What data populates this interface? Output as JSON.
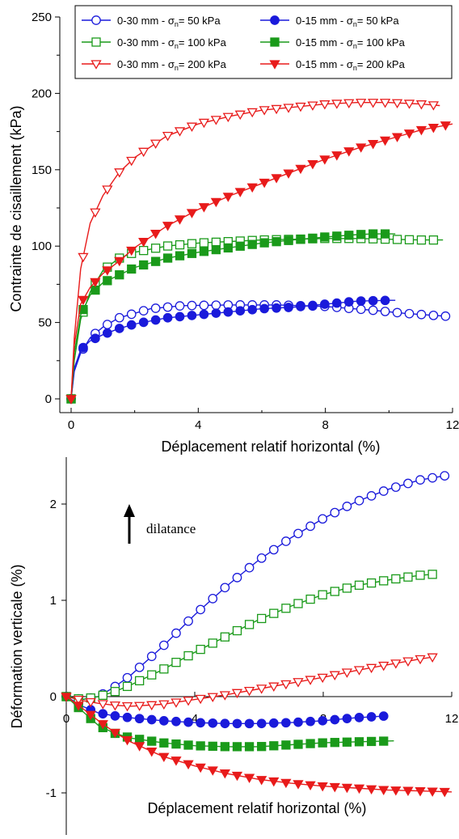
{
  "chart_data": [
    {
      "type": "line",
      "xlabel": "Déplacement relatif horizontal (%)",
      "ylabel": "Contrainte de cisaillement (kPa)",
      "xlim": [
        0,
        12
      ],
      "ylim": [
        0,
        250
      ],
      "xticks": [
        "0",
        "4",
        "8",
        "12"
      ],
      "yticks": [
        "0",
        "50",
        "100",
        "150",
        "200",
        "250"
      ],
      "legend_position": "top",
      "legend": [
        {
          "prefix": "0-30 mm - σ",
          "sub": "n",
          "suffix": "=  50 kPa",
          "color": "#1a1adb",
          "marker": "circle-open"
        },
        {
          "prefix": "0-15 mm - σ",
          "sub": "n",
          "suffix": "=  50 kPa",
          "color": "#1a1adb",
          "marker": "circle-filled"
        },
        {
          "prefix": "0-30 mm - σ",
          "sub": "n",
          "suffix": "=  100 kPa",
          "color": "#1a9a1a",
          "marker": "square-open"
        },
        {
          "prefix": "0-15 mm - σ",
          "sub": "n",
          "suffix": "=  100 kPa",
          "color": "#1a9a1a",
          "marker": "square-filled"
        },
        {
          "prefix": "0-30 mm - σ",
          "sub": "n",
          "suffix": "=  200 kPa",
          "color": "#e81b1b",
          "marker": "triangle-down-open"
        },
        {
          "prefix": "0-15 mm - σ",
          "sub": "n",
          "suffix": "=  200 kPa",
          "color": "#e81b1b",
          "marker": "triangle-down-filled"
        }
      ],
      "series": [
        {
          "color": "#1a1adb",
          "marker": "circle-open",
          "x": [
            0,
            0.1,
            0.3,
            0.6,
            1.0,
            1.5,
            2.5,
            3.5,
            5.0,
            6.5,
            8.0,
            9.5,
            10.5,
            11.5,
            11.9
          ],
          "y": [
            0,
            18,
            30,
            40,
            47,
            53,
            59,
            61,
            61.5,
            61.5,
            60.5,
            58,
            56,
            54.5,
            54
          ]
        },
        {
          "color": "#1a1adb",
          "marker": "circle-filled",
          "x": [
            0,
            0.1,
            0.3,
            0.6,
            1.0,
            1.5,
            2.0,
            3.0,
            4.0,
            5.0,
            6.0,
            7.0,
            8.0,
            9.0,
            10.0,
            10.2
          ],
          "y": [
            0,
            20,
            32,
            38,
            42,
            46,
            49,
            53,
            55,
            57,
            59,
            60,
            62,
            64,
            64.5,
            64.5
          ]
        },
        {
          "color": "#1a9a1a",
          "marker": "square-open",
          "x": [
            0,
            0.1,
            0.3,
            0.6,
            1.0,
            1.5,
            2.0,
            3.0,
            4.0,
            5.0,
            6.0,
            7.0,
            8.0,
            9.0,
            10.0,
            11.0,
            11.7
          ],
          "y": [
            0,
            25,
            52,
            70,
            84,
            92,
            96,
            100,
            102,
            103,
            104,
            104.5,
            105,
            105,
            104.5,
            104,
            104
          ]
        },
        {
          "color": "#1a9a1a",
          "marker": "square-filled",
          "x": [
            0,
            0.1,
            0.3,
            0.6,
            1.0,
            1.5,
            2.0,
            3.0,
            4.0,
            5.0,
            6.0,
            7.0,
            8.0,
            9.0,
            9.5,
            10.2
          ],
          "y": [
            0,
            30,
            55,
            68,
            76,
            81,
            86,
            92,
            96,
            99,
            102,
            104,
            106,
            107.5,
            108,
            108
          ]
        },
        {
          "color": "#e81b1b",
          "marker": "triangle-down-open",
          "x": [
            0,
            0.1,
            0.3,
            0.6,
            1.0,
            1.5,
            2.0,
            3.0,
            4.0,
            5.0,
            6.0,
            7.0,
            8.0,
            9.0,
            10.0,
            11.0,
            11.6
          ],
          "y": [
            0,
            40,
            85,
            115,
            133,
            148,
            158,
            172,
            180,
            185,
            189,
            191,
            193,
            194,
            194,
            193,
            192
          ]
        },
        {
          "color": "#e81b1b",
          "marker": "triangle-down-filled",
          "x": [
            0,
            0.1,
            0.3,
            0.6,
            1.0,
            1.5,
            2.0,
            3.0,
            4.0,
            5.0,
            6.0,
            7.0,
            8.0,
            9.0,
            10.0,
            11.0,
            12.0
          ],
          "y": [
            0,
            35,
            62,
            73,
            82,
            90,
            99,
            113,
            124,
            133,
            141,
            149,
            157,
            164,
            170,
            176,
            180
          ]
        }
      ]
    },
    {
      "type": "line",
      "xlabel": "Déplacement relatif horizontal (%)",
      "ylabel": "Déformation verticale (%)",
      "xlim": [
        0,
        12
      ],
      "ylim": [
        -1.5,
        2.5
      ],
      "xticks": [
        "0",
        "4",
        "8",
        "12"
      ],
      "yticks": [
        "-1",
        "0",
        "1",
        "2"
      ],
      "annotation": "dilatance",
      "series": [
        {
          "color": "#1a1adb",
          "marker": "circle-open",
          "x": [
            0,
            0.5,
            1.0,
            1.5,
            2.0,
            3.0,
            4.0,
            5.0,
            6.0,
            7.0,
            8.0,
            9.0,
            10.0,
            11.0,
            11.9
          ],
          "y": [
            0,
            -0.03,
            0,
            0.1,
            0.22,
            0.52,
            0.85,
            1.15,
            1.42,
            1.65,
            1.85,
            2.02,
            2.15,
            2.25,
            2.3
          ]
        },
        {
          "color": "#1a1adb",
          "marker": "circle-filled",
          "x": [
            0,
            0.5,
            1.0,
            1.5,
            2.0,
            3.0,
            4.0,
            5.0,
            6.0,
            7.0,
            8.0,
            9.0,
            10.0
          ],
          "y": [
            0,
            -0.1,
            -0.17,
            -0.2,
            -0.22,
            -0.25,
            -0.27,
            -0.28,
            -0.28,
            -0.27,
            -0.25,
            -0.22,
            -0.2
          ]
        },
        {
          "color": "#1a9a1a",
          "marker": "square-open",
          "x": [
            0,
            0.5,
            1.0,
            1.5,
            2.0,
            3.0,
            4.0,
            5.0,
            6.0,
            7.0,
            8.0,
            9.0,
            10.0,
            11.0,
            11.4
          ],
          "y": [
            0,
            -0.03,
            0,
            0.05,
            0.12,
            0.28,
            0.46,
            0.63,
            0.8,
            0.94,
            1.06,
            1.15,
            1.21,
            1.26,
            1.27
          ]
        },
        {
          "color": "#1a9a1a",
          "marker": "square-filled",
          "x": [
            0,
            0.5,
            1.0,
            1.5,
            2.0,
            3.0,
            4.0,
            5.0,
            6.0,
            7.0,
            8.0,
            9.0,
            10.2
          ],
          "y": [
            0,
            -0.15,
            -0.3,
            -0.38,
            -0.43,
            -0.48,
            -0.51,
            -0.52,
            -0.52,
            -0.5,
            -0.48,
            -0.47,
            -0.46
          ]
        },
        {
          "color": "#e81b1b",
          "marker": "triangle-down-open",
          "x": [
            0,
            0.5,
            1.0,
            1.5,
            2.0,
            3.0,
            4.0,
            5.0,
            6.0,
            7.0,
            8.0,
            9.0,
            10.0,
            11.0,
            11.4
          ],
          "y": [
            0,
            -0.04,
            -0.07,
            -0.09,
            -0.1,
            -0.08,
            -0.03,
            0.02,
            0.08,
            0.14,
            0.2,
            0.27,
            0.33,
            0.39,
            0.41
          ]
        },
        {
          "color": "#e81b1b",
          "marker": "triangle-down-filled",
          "x": [
            0,
            0.5,
            1.0,
            1.5,
            2.0,
            3.0,
            4.0,
            5.0,
            6.0,
            7.0,
            8.0,
            9.0,
            10.0,
            11.0,
            12.0
          ],
          "y": [
            0,
            -0.12,
            -0.25,
            -0.37,
            -0.47,
            -0.62,
            -0.72,
            -0.8,
            -0.86,
            -0.9,
            -0.93,
            -0.95,
            -0.97,
            -0.98,
            -0.99
          ]
        }
      ]
    }
  ]
}
